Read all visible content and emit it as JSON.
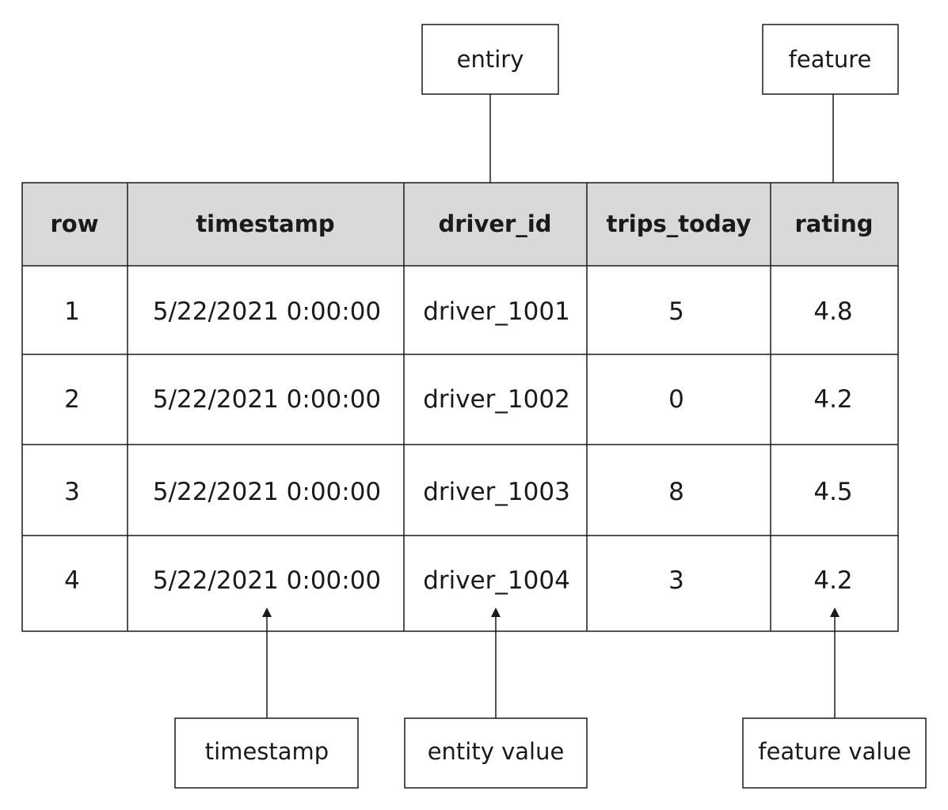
{
  "callouts": {
    "entity": "entiry",
    "feature": "feature",
    "timestamp": "timestamp",
    "entity_value": "entity value",
    "feature_value": "feature value"
  },
  "table": {
    "headers": [
      "row",
      "timestamp",
      "driver_id",
      "trips_today",
      "rating"
    ],
    "rows": [
      [
        "1",
        "5/22/2021 0:00:00",
        "driver_1001",
        "5",
        "4.8"
      ],
      [
        "2",
        "5/22/2021 0:00:00",
        "driver_1002",
        "0",
        "4.2"
      ],
      [
        "3",
        "5/22/2021 0:00:00",
        "driver_1003",
        "8",
        "4.5"
      ],
      [
        "4",
        "5/22/2021 0:00:00",
        "driver_1004",
        "3",
        "4.2"
      ]
    ]
  },
  "colors": {
    "header_fill": "#d9d9d9",
    "stroke": "#1a1a1a",
    "background": "#ffffff"
  }
}
